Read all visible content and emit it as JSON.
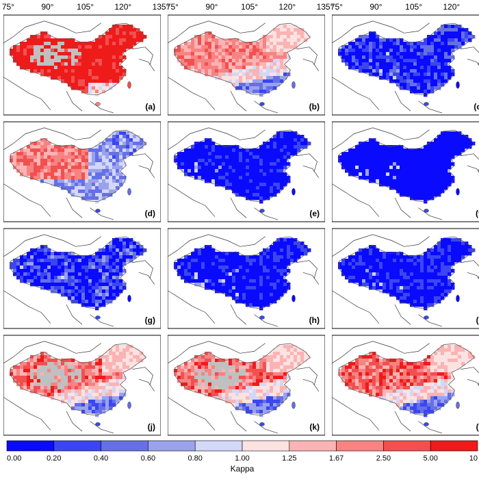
{
  "chart_data": {
    "type": "heatmap",
    "description_units": "Kappa",
    "longitude_ticks": [
      "75°",
      "90°",
      "105°",
      "120°",
      "135°"
    ],
    "panels": [
      {
        "label": "(a)",
        "dominant": "high",
        "intensity": 0.95,
        "gray_missing": true
      },
      {
        "label": "(b)",
        "dominant": "mixed-high-north",
        "intensity": 0.55,
        "gray_missing": false
      },
      {
        "label": "(c)",
        "dominant": "low",
        "intensity": 0.75,
        "gray_missing": false
      },
      {
        "label": "(d)",
        "dominant": "mixed-high-west",
        "intensity": 0.7,
        "gray_missing": false
      },
      {
        "label": "(e)",
        "dominant": "low",
        "intensity": 0.9,
        "gray_missing": false
      },
      {
        "label": "(f)",
        "dominant": "low",
        "intensity": 0.98,
        "gray_missing": false
      },
      {
        "label": "(g)",
        "dominant": "low",
        "intensity": 0.7,
        "gray_missing": false
      },
      {
        "label": "(h)",
        "dominant": "low",
        "intensity": 0.88,
        "gray_missing": false
      },
      {
        "label": "(i)",
        "dominant": "low",
        "intensity": 0.85,
        "gray_missing": false
      },
      {
        "label": "(j)",
        "dominant": "mixed-high-north",
        "intensity": 0.75,
        "gray_missing": true
      },
      {
        "label": "(k)",
        "dominant": "mixed-high-north",
        "intensity": 0.8,
        "gray_missing": true
      },
      {
        "label": "(l)",
        "dominant": "mixed-high-north",
        "intensity": 0.9,
        "gray_missing": false
      }
    ],
    "colorbar": {
      "title": "Kappa",
      "boundaries": [
        "0.00",
        "0.20",
        "0.40",
        "0.60",
        "0.80",
        "1.00",
        "1.25",
        "1.67",
        "2.50",
        "5.00",
        "10"
      ],
      "colors": [
        "#0a0aff",
        "#3b46f0",
        "#6670e6",
        "#9aa2ee",
        "#d3d7f8",
        "#fde2e2",
        "#fbb3b3",
        "#f78383",
        "#f25050",
        "#ee1b1b"
      ]
    },
    "missing_color": "#c0c0c0"
  }
}
